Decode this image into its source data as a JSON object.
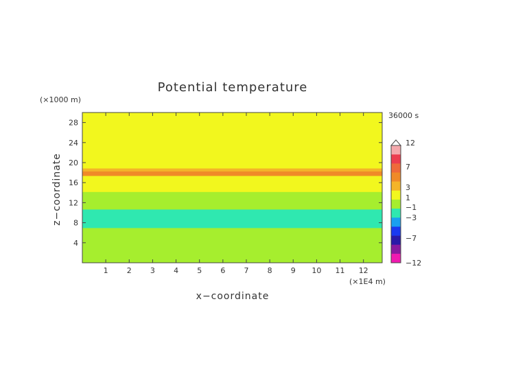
{
  "chart_data": {
    "type": "heatmap",
    "title": "Potential temperature",
    "xlabel": "x−coordinate",
    "ylabel": "z−coordinate",
    "x_unit": "(×1E4 m)",
    "y_unit": "(×1000 m)",
    "time_label": "36000 s",
    "xlim": [
      0,
      12.8
    ],
    "ylim": [
      0,
      30
    ],
    "x_ticks": [
      "1",
      "2",
      "3",
      "4",
      "5",
      "6",
      "7",
      "8",
      "9",
      "10",
      "11",
      "12"
    ],
    "y_ticks": [
      "4",
      "8",
      "12",
      "16",
      "20",
      "24",
      "28"
    ],
    "bands": [
      {
        "z_from": 0,
        "z_to": 7,
        "level": "0 to 1",
        "color": "#a6ee2e"
      },
      {
        "z_from": 7,
        "z_to": 10.7,
        "level": "-1 to -2",
        "color": "#2fe8b0"
      },
      {
        "z_from": 10.7,
        "z_to": 14.2,
        "level": "0 to 1",
        "color": "#a6ee2e"
      },
      {
        "z_from": 14.2,
        "z_to": 17.4,
        "level": "1 to 2",
        "color": "#f2f71e"
      },
      {
        "z_from": 17.4,
        "z_to": 18.3,
        "level": "3 to 4",
        "color": "#f08a28"
      },
      {
        "z_from": 18.3,
        "z_to": 18.9,
        "level": "2 to 3",
        "color": "#f4b428"
      },
      {
        "z_from": 18.9,
        "z_to": 30,
        "level": "1 to 2",
        "color": "#f2f71e"
      }
    ],
    "colorbar": {
      "labels": [
        "12",
        "7",
        "3",
        "1",
        "−1",
        "−3",
        "−7",
        "−12"
      ],
      "colors": [
        "#f4a8ac",
        "#ec3d4f",
        "#ef6a3a",
        "#f08a28",
        "#f4b428",
        "#f2f71e",
        "#a6ee2e",
        "#2fe8b0",
        "#1aa0f0",
        "#1a3af0",
        "#2a1aa8",
        "#8a1aa0",
        "#f01ab0"
      ]
    }
  }
}
